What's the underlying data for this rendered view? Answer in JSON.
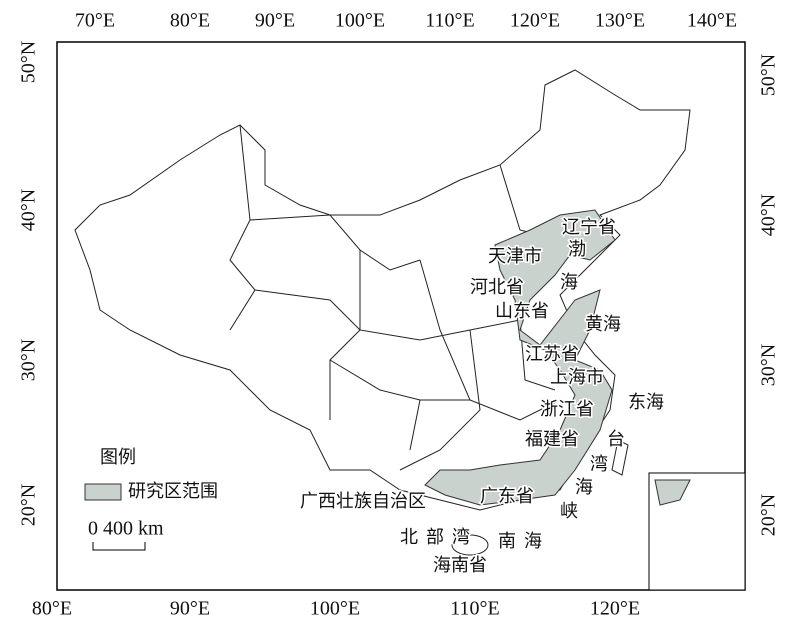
{
  "axes": {
    "top": [
      "70°E",
      "80°E",
      "90°E",
      "100°E",
      "110°E",
      "120°E",
      "130°E",
      "140°E"
    ],
    "bottom": [
      "80°E",
      "90°E",
      "100°E",
      "110°E",
      "120°E"
    ],
    "left": [
      "50°N",
      "40°N",
      "30°N",
      "20°N"
    ],
    "right": [
      "50°N",
      "40°N",
      "30°N",
      "20°N"
    ]
  },
  "legend": {
    "title": "图例",
    "items": [
      "研究区范围"
    ]
  },
  "scale_bar": {
    "label": "0 400 km"
  },
  "labels": [
    "辽宁省",
    "天津市",
    "渤",
    "海",
    "河北省",
    "山东省",
    "黄海",
    "江苏省",
    "上海市",
    "浙江省",
    "东海",
    "福建省",
    "台",
    "湾",
    "海",
    "峡",
    "广西壮族自治区",
    "广东省",
    "北部湾",
    "南海",
    "海南省"
  ]
}
